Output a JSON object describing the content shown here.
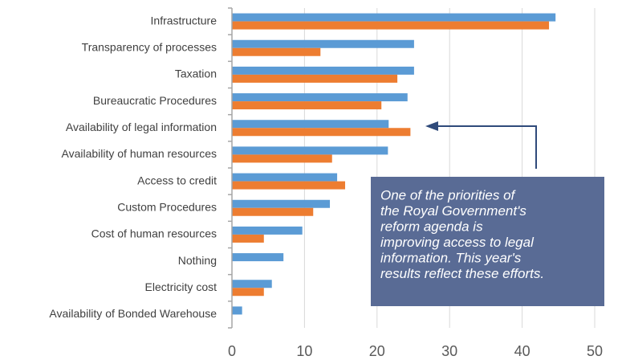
{
  "chart_data": {
    "type": "bar",
    "orientation": "horizontal",
    "categories": [
      "Infrastructure",
      "Transparency of processes",
      "Taxation",
      "Bureaucratic Procedures",
      "Availability of legal information",
      "Availability of human resources",
      "Access to credit",
      "Custom Procedures",
      "Cost of human resources",
      "Nothing",
      "Electricity cost",
      "Availability of Bonded Warehouse"
    ],
    "series": [
      {
        "color": "#5b9bd5",
        "values": [
          44.6,
          25.1,
          25.1,
          24.2,
          21.6,
          21.5,
          14.5,
          13.5,
          9.7,
          7.1,
          5.5,
          1.4
        ]
      },
      {
        "color": "#ed7d31",
        "values": [
          43.7,
          12.2,
          22.8,
          20.6,
          24.6,
          13.8,
          15.6,
          11.2,
          4.4,
          null,
          4.4,
          null
        ]
      }
    ],
    "xlim": [
      0,
      50
    ],
    "xticks": [
      0,
      10,
      20,
      30,
      40,
      50
    ],
    "grid": true,
    "annotation": [
      "One of the priorities of",
      "the Royal Government's",
      "reform agenda is",
      "improving access to legal",
      "information. This year's",
      "results reflect these efforts."
    ]
  }
}
